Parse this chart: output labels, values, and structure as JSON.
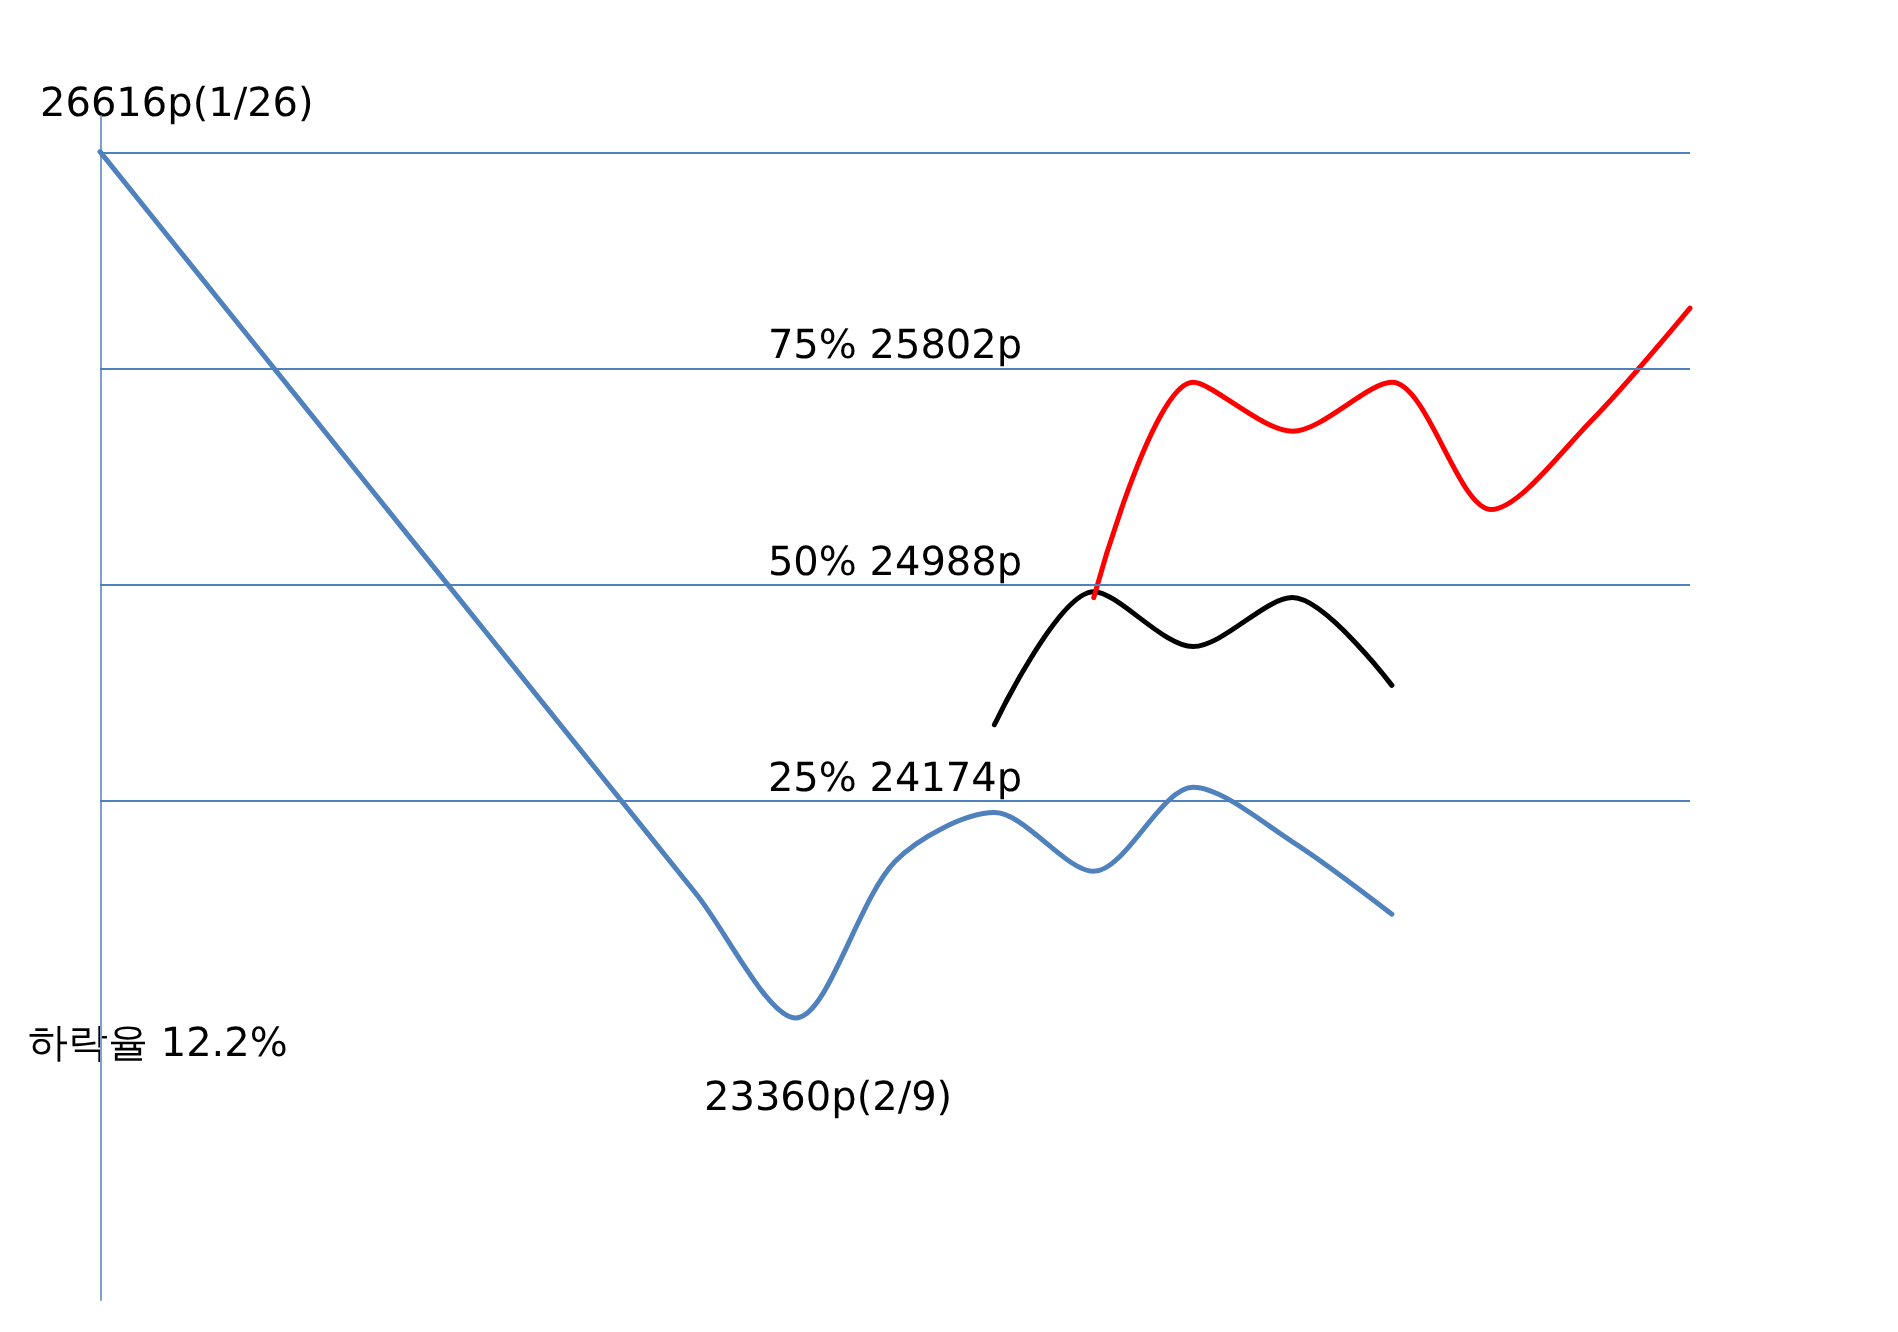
{
  "chart_data": {
    "type": "line",
    "categories": [
      null,
      null,
      null,
      null,
      null,
      null,
      null,
      null,
      null,
      null,
      null,
      null,
      null,
      null,
      null,
      null,
      null
    ],
    "series": [
      {
        "color": "#4f81bd",
        "values": [
          26616,
          26151,
          25686,
          25221,
          24756,
          24291,
          23826,
          23360,
          23948,
          24132,
          23911,
          24227,
          24022,
          23750,
          null,
          null,
          null
        ]
      },
      {
        "color": "#000000",
        "values": [
          null,
          null,
          null,
          null,
          null,
          null,
          null,
          null,
          null,
          24462,
          24962,
          24756,
          24940,
          24610,
          null,
          null,
          null
        ]
      },
      {
        "color": "#ff0000",
        "values": [
          null,
          null,
          null,
          null,
          null,
          null,
          null,
          null,
          null,
          null,
          24940,
          25749,
          25565,
          25749,
          25271,
          25602,
          26028
        ]
      }
    ],
    "ylim": [
      22300,
      26750
    ],
    "tick_labels": false,
    "grid": false,
    "marker": "none",
    "line_style": "solid",
    "ref_lines": [
      {
        "axis": "y",
        "value": 26616,
        "label": null,
        "color": "#4f81bd"
      },
      {
        "axis": "y",
        "value": 25802,
        "label": "75% 25802p",
        "color": "#4f81bd"
      },
      {
        "axis": "y",
        "value": 24988,
        "label": "50% 24988p",
        "color": "#4f81bd"
      },
      {
        "axis": "y",
        "value": 24174,
        "label": "25% 24174p",
        "color": "#4f81bd"
      }
    ],
    "annotations": [
      "26616p(1/26)",
      "23360p(2/9)",
      "하락율 12.2%"
    ]
  }
}
